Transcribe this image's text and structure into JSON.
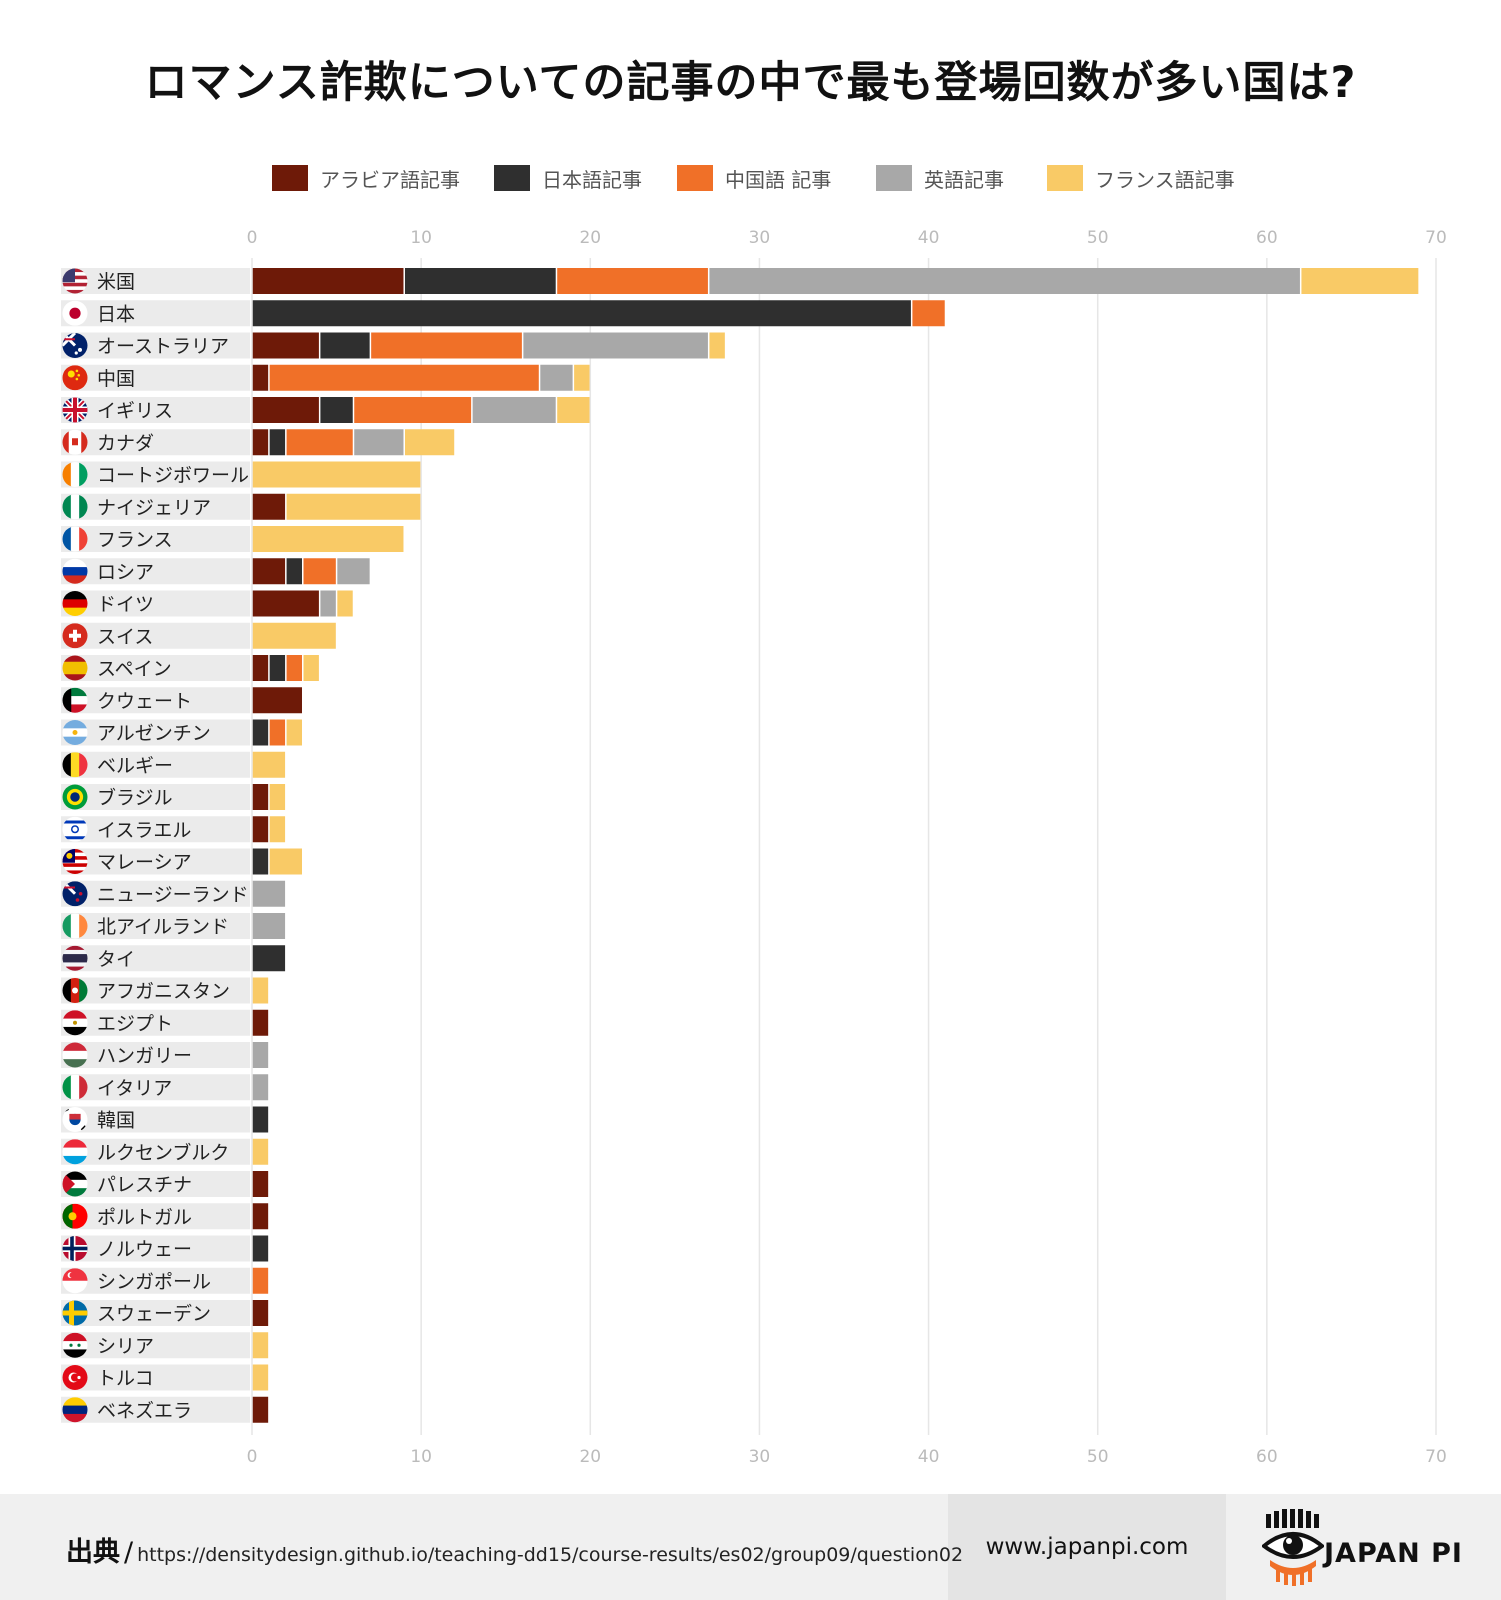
{
  "title": "ロマンス詐欺についての記事の中で最も登場回数が多い国は?",
  "colors": {
    "arabic": "#6e1a08",
    "japanese": "#2f2f2f",
    "chinese": "#f07028",
    "english": "#a8a8a8",
    "french": "#f9ca66",
    "label_bg": "#ebebeb",
    "grid": "#e6e6e6",
    "tick": "#bbbbbb"
  },
  "chart_data": {
    "type": "bar",
    "orientation": "horizontal",
    "stacked": true,
    "title": "ロマンス詐欺についての記事の中で最も登場回数が多い国は?",
    "xlim": [
      0,
      70
    ],
    "ticks": [
      0,
      10,
      20,
      30,
      40,
      50,
      60,
      70
    ],
    "grid": true,
    "legend_position": "top",
    "categories": [
      "米国",
      "日本",
      "オーストラリア",
      "中国",
      "イギリス",
      "カナダ",
      "コートジボワール",
      "ナイジェリア",
      "フランス",
      "ロシア",
      "ドイツ",
      "スイス",
      "スペイン",
      "クウェート",
      "アルゼンチン",
      "ベルギー",
      "ブラジル",
      "イスラエル",
      "マレーシア",
      "ニュージーランド",
      "北アイルランド",
      "タイ",
      "アフガニスタン",
      "エジプト",
      "ハンガリー",
      "イタリア",
      "韓国",
      "ルクセンブルク",
      "パレスチナ",
      "ポルトガル",
      "ノルウェー",
      "シンガポール",
      "スウェーデン",
      "シリア",
      "トルコ",
      "ベネズエラ"
    ],
    "series": [
      {
        "name": "アラビア語記事",
        "color_key": "arabic",
        "values": [
          9,
          0,
          4,
          1,
          4,
          1,
          0,
          2,
          0,
          2,
          4,
          0,
          1,
          3,
          0,
          0,
          1,
          1,
          0,
          0,
          0,
          0,
          0,
          1,
          0,
          0,
          0,
          0,
          1,
          1,
          0,
          0,
          1,
          0,
          0,
          1
        ]
      },
      {
        "name": "日本語記事",
        "color_key": "japanese",
        "values": [
          9,
          39,
          3,
          0,
          2,
          1,
          0,
          0,
          0,
          1,
          0,
          0,
          1,
          0,
          1,
          0,
          0,
          0,
          1,
          0,
          0,
          2,
          0,
          0,
          0,
          0,
          1,
          0,
          0,
          0,
          1,
          0,
          0,
          0,
          0,
          0
        ]
      },
      {
        "name": "中国語 記事",
        "color_key": "chinese",
        "values": [
          9,
          2,
          9,
          16,
          7,
          4,
          0,
          0,
          0,
          2,
          0,
          0,
          1,
          0,
          1,
          0,
          0,
          0,
          0,
          0,
          0,
          0,
          0,
          0,
          0,
          0,
          0,
          0,
          0,
          0,
          0,
          1,
          0,
          0,
          0,
          0
        ]
      },
      {
        "name": "英語記事",
        "color_key": "english",
        "values": [
          35,
          0,
          11,
          2,
          5,
          3,
          0,
          0,
          0,
          2,
          1,
          0,
          0,
          0,
          0,
          0,
          0,
          0,
          0,
          2,
          2,
          0,
          0,
          0,
          1,
          1,
          0,
          0,
          0,
          0,
          0,
          0,
          0,
          0,
          0,
          0
        ]
      },
      {
        "name": "フランス語記事",
        "color_key": "french",
        "values": [
          7,
          0,
          1,
          1,
          2,
          3,
          10,
          8,
          9,
          0,
          1,
          5,
          1,
          0,
          1,
          2,
          1,
          1,
          2,
          0,
          0,
          0,
          1,
          0,
          0,
          0,
          0,
          1,
          0,
          0,
          0,
          0,
          0,
          1,
          1,
          0
        ]
      }
    ],
    "flags": [
      "flag-usa-icon",
      "flag-japan-icon",
      "flag-australia-icon",
      "flag-china-icon",
      "flag-uk-icon",
      "flag-canada-icon",
      "flag-cote-divoire-icon",
      "flag-nigeria-icon",
      "flag-france-icon",
      "flag-russia-icon",
      "flag-germany-icon",
      "flag-switzerland-icon",
      "flag-spain-icon",
      "flag-kuwait-icon",
      "flag-argentina-icon",
      "flag-belgium-icon",
      "flag-brazil-icon",
      "flag-israel-icon",
      "flag-malaysia-icon",
      "flag-new-zealand-icon",
      "flag-northern-ireland-icon",
      "flag-thailand-icon",
      "flag-afghanistan-icon",
      "flag-egypt-icon",
      "flag-hungary-icon",
      "flag-italy-icon",
      "flag-korea-icon",
      "flag-luxembourg-icon",
      "flag-palestine-icon",
      "flag-portugal-icon",
      "flag-norway-icon",
      "flag-singapore-icon",
      "flag-sweden-icon",
      "flag-syria-icon",
      "flag-turkey-icon",
      "flag-venezuela-icon"
    ]
  },
  "footer": {
    "source_label": "出典",
    "source_sep": "/",
    "source_url": "https://densitydesign.github.io/teaching-dd15/course-results/es02/group09/question02",
    "site": "www.japanpi.com",
    "brand": "JAPAN PI",
    "logo_icon": "eye-logo-icon"
  }
}
